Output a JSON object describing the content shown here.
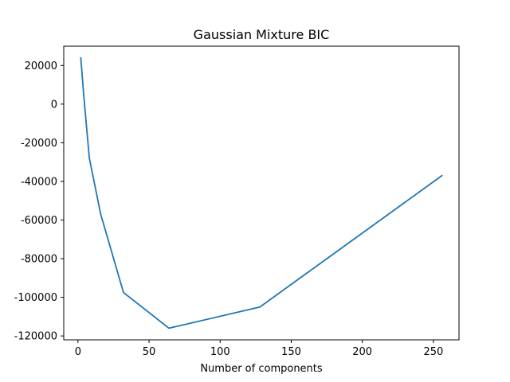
{
  "chart_data": {
    "type": "line",
    "title": "Gaussian Mixture BIC",
    "xlabel": "Number of components",
    "ylabel": "",
    "xlim": [
      -10,
      268
    ],
    "ylim": [
      -122000,
      30000
    ],
    "xticks": [
      0,
      50,
      100,
      150,
      200,
      250
    ],
    "yticks": [
      20000,
      0,
      -20000,
      -40000,
      -60000,
      -80000,
      -100000,
      -120000
    ],
    "grid": false,
    "series": [
      {
        "color": "#1f77b4",
        "x": [
          2,
          4,
          8,
          16,
          32,
          64,
          128,
          256
        ],
        "y": [
          24000,
          5000,
          -28000,
          -57000,
          -97500,
          -116000,
          -105000,
          -37000
        ]
      }
    ]
  }
}
